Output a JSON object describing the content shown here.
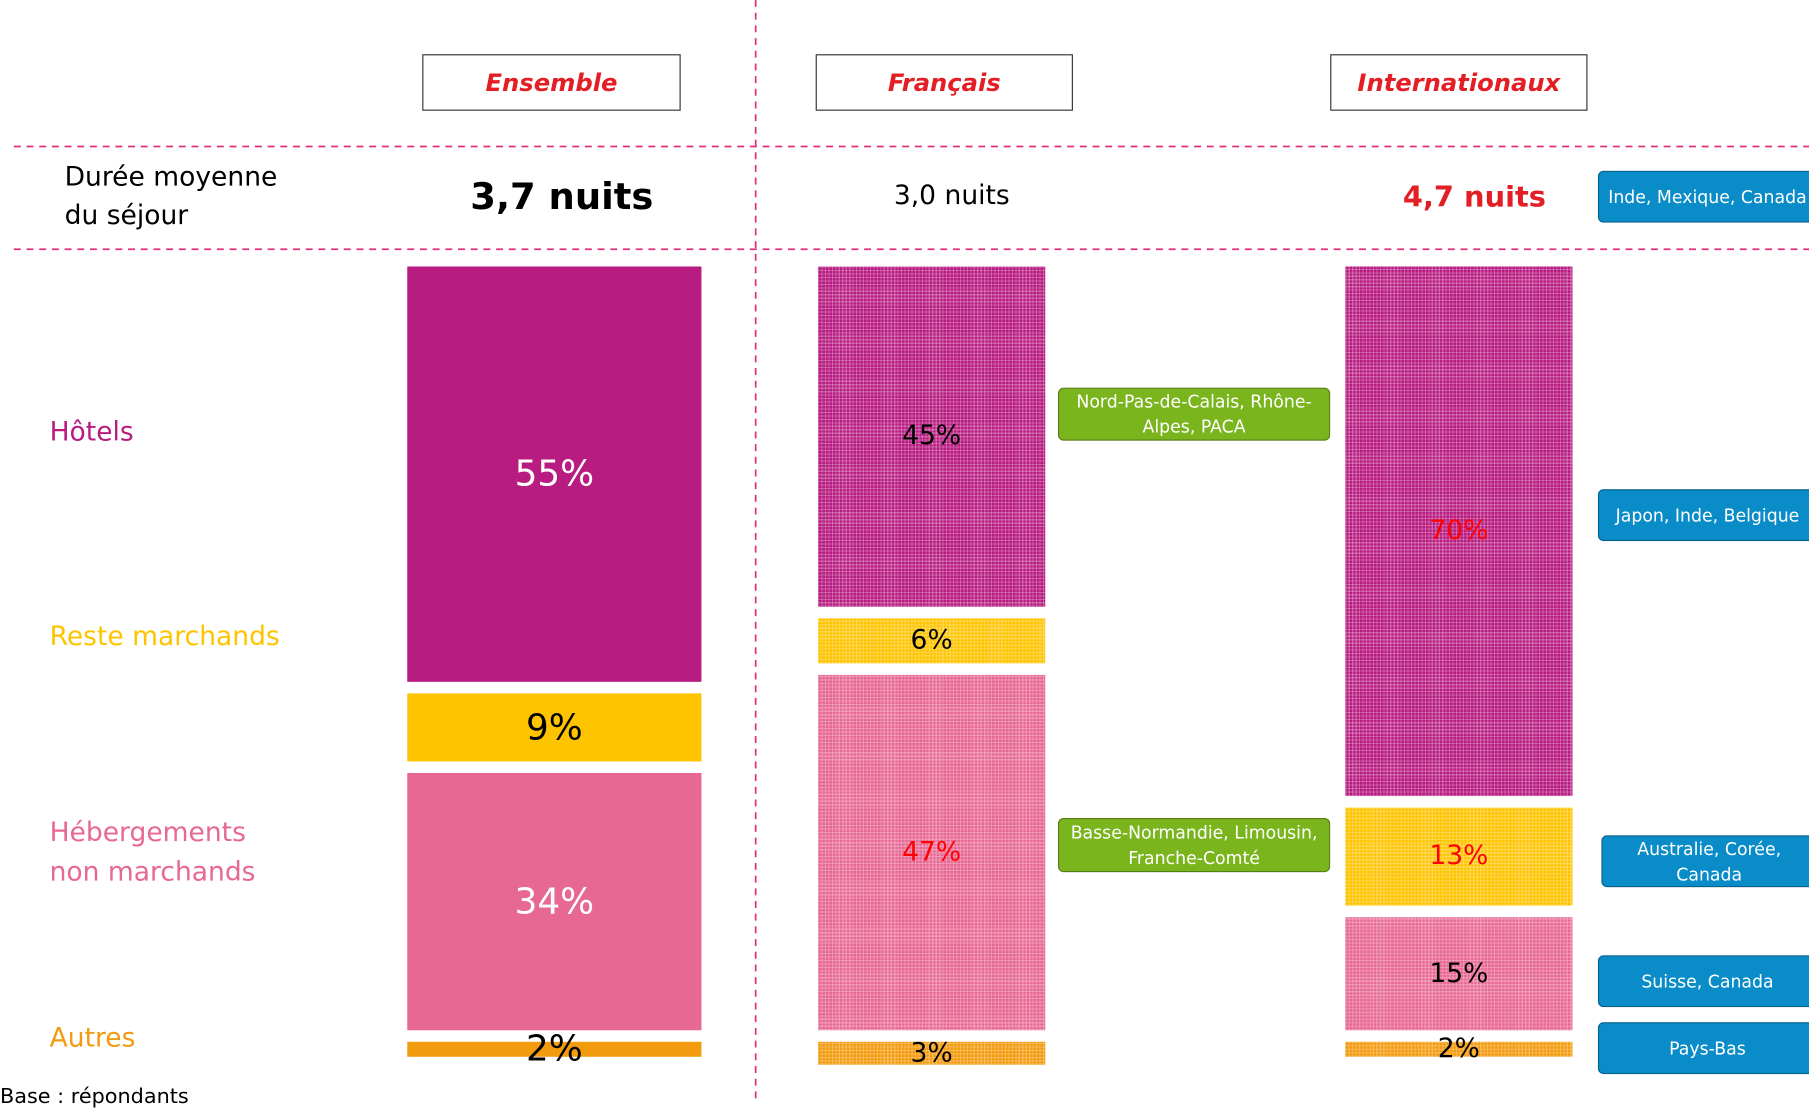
{
  "chart_data": {
    "type": "stacked-column",
    "categories": [
      "Ensemble",
      "Français",
      "Internationaux"
    ],
    "duration": {
      "label": "Durée moyenne du séjour",
      "values": [
        3.7,
        3.0,
        4.7
      ],
      "value_labels": [
        "3,7 nuits",
        "3,0 nuits",
        "4,7 nuits"
      ],
      "label_colors": [
        "#000000",
        "#000000",
        "#e31e24"
      ]
    },
    "series": [
      {
        "name": "Hôtels",
        "color": "#b81c80",
        "values": [
          55,
          45,
          70
        ],
        "value_labels": [
          "55%",
          "45%",
          "70%"
        ],
        "label_colors": [
          "#ffffff",
          "#000000",
          "#ff0000"
        ]
      },
      {
        "name": "Reste marchands",
        "color": "#fec400",
        "values": [
          9,
          6,
          13
        ],
        "value_labels": [
          "9%",
          "6%",
          "13%"
        ],
        "label_colors": [
          "#000000",
          "#000000",
          "#ff0000"
        ]
      },
      {
        "name": "Hébergements non marchands",
        "color": "#e86894",
        "values": [
          34,
          47,
          15
        ],
        "value_labels": [
          "34%",
          "47%",
          "15%"
        ],
        "label_colors": [
          "#ffffff",
          "#ff0000",
          "#000000"
        ]
      },
      {
        "name": "Autres",
        "color": "#f39b0f",
        "values": [
          2,
          3,
          2
        ],
        "value_labels": [
          "2%",
          "3%",
          "2%"
        ],
        "label_colors": [
          "#000000",
          "#000000",
          "#000000"
        ]
      }
    ],
    "annotations": [
      {
        "text": "Nord-Pas-de-Calais, Rhône-Alpes, PACA",
        "color": "#7ab51d"
      },
      {
        "text": "Basse-Normandie, Limousin, Franche-Comté",
        "color": "#7ab51d"
      },
      {
        "text": "Inde, Mexique, Canada",
        "color": "#0a8cc8"
      },
      {
        "text": "Japon, Inde, Belgique",
        "color": "#0a8cc8"
      },
      {
        "text": "Australie, Corée, Canada",
        "color": "#0a8cc8"
      },
      {
        "text": "Suisse, Canada",
        "color": "#0a8cc8"
      },
      {
        "text": "Pays-Bas",
        "color": "#0a8cc8"
      }
    ],
    "footnote": "Base : répondants"
  }
}
